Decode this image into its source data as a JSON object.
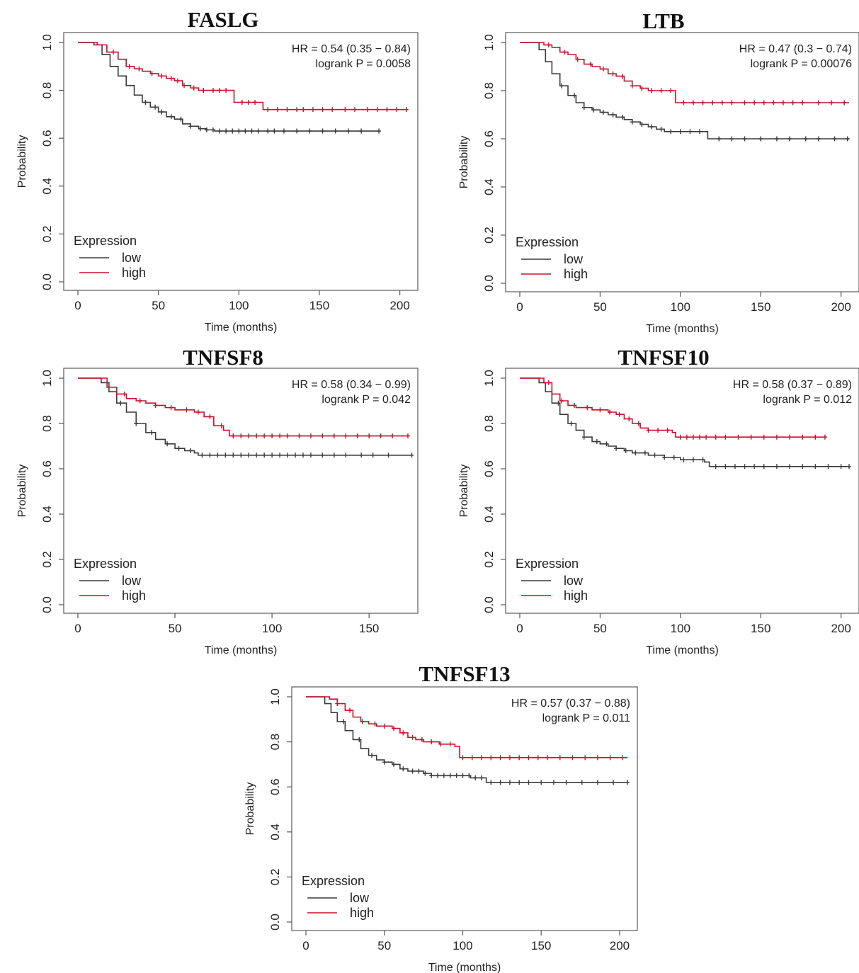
{
  "chart_data": [
    {
      "type": "line",
      "title": "FASLG",
      "xlabel": "Time (months)",
      "ylabel": "Probability",
      "xlim": [
        0,
        205
      ],
      "ylim": [
        0,
        1
      ],
      "xticks": [
        "0",
        "50",
        "100",
        "150",
        "200"
      ],
      "yticks": [
        "0.0",
        "0.2",
        "0.4",
        "0.6",
        "0.8",
        "1.0"
      ],
      "annotation": [
        "HR = 0.54 (0.35 − 0.84)",
        "logrank P = 0.0058"
      ],
      "legend_title": "Expression",
      "legend_position": "bottom-left",
      "series": [
        {
          "name": "low",
          "color": "#3a3a3a",
          "x": [
            0,
            5,
            10,
            15,
            20,
            25,
            30,
            35,
            40,
            45,
            50,
            55,
            60,
            65,
            70,
            75,
            80,
            85,
            90,
            187
          ],
          "y": [
            1.0,
            1.0,
            0.99,
            0.95,
            0.9,
            0.86,
            0.82,
            0.78,
            0.75,
            0.73,
            0.71,
            0.69,
            0.68,
            0.66,
            0.65,
            0.64,
            0.635,
            0.63,
            0.63,
            0.63
          ],
          "censor_x": [
            42,
            48,
            52,
            58,
            64,
            70,
            76,
            80,
            84,
            88,
            92,
            96,
            100,
            104,
            108,
            112,
            118,
            122,
            128,
            136,
            144,
            152,
            160,
            168,
            176,
            187
          ]
        },
        {
          "name": "high",
          "color": "#c8102e",
          "x": [
            0,
            8,
            12,
            18,
            25,
            30,
            35,
            40,
            45,
            50,
            55,
            60,
            65,
            70,
            75,
            80,
            85,
            90,
            97,
            100,
            110,
            115,
            120,
            205
          ],
          "y": [
            1.0,
            1.0,
            0.99,
            0.96,
            0.93,
            0.9,
            0.89,
            0.88,
            0.87,
            0.86,
            0.85,
            0.84,
            0.82,
            0.81,
            0.8,
            0.8,
            0.8,
            0.8,
            0.75,
            0.75,
            0.75,
            0.72,
            0.72,
            0.72
          ],
          "censor_x": [
            22,
            32,
            38,
            46,
            52,
            58,
            62,
            66,
            72,
            78,
            84,
            88,
            92,
            102,
            106,
            110,
            118,
            124,
            130,
            136,
            140,
            146,
            152,
            158,
            166,
            172,
            180,
            186,
            192,
            198,
            204
          ]
        }
      ]
    },
    {
      "type": "line",
      "title": "LTB",
      "xlabel": "Time (months)",
      "ylabel": "Probability",
      "xlim": [
        0,
        205
      ],
      "ylim": [
        0,
        1
      ],
      "xticks": [
        "0",
        "50",
        "100",
        "150",
        "200"
      ],
      "yticks": [
        "0.0",
        "0.2",
        "0.4",
        "0.6",
        "0.8",
        "1.0"
      ],
      "annotation": [
        "HR = 0.47 (0.3 − 0.74)",
        "logrank P = 0.00076"
      ],
      "legend_title": "Expression",
      "legend_position": "bottom-left",
      "series": [
        {
          "name": "low",
          "color": "#3a3a3a",
          "x": [
            0,
            8,
            12,
            16,
            20,
            25,
            30,
            35,
            40,
            45,
            50,
            55,
            60,
            65,
            70,
            75,
            80,
            85,
            90,
            100,
            110,
            117,
            120,
            205
          ],
          "y": [
            1.0,
            1.0,
            0.97,
            0.92,
            0.87,
            0.82,
            0.78,
            0.75,
            0.73,
            0.72,
            0.71,
            0.7,
            0.69,
            0.68,
            0.67,
            0.66,
            0.65,
            0.64,
            0.63,
            0.63,
            0.63,
            0.6,
            0.6,
            0.6
          ],
          "censor_x": [
            26,
            34,
            40,
            46,
            52,
            58,
            64,
            70,
            76,
            82,
            88,
            94,
            100,
            106,
            112,
            124,
            132,
            140,
            150,
            160,
            168,
            178,
            186,
            196,
            204
          ]
        },
        {
          "name": "high",
          "color": "#c8102e",
          "x": [
            0,
            10,
            15,
            20,
            25,
            30,
            35,
            40,
            45,
            50,
            55,
            60,
            65,
            70,
            75,
            80,
            85,
            90,
            97,
            100,
            205
          ],
          "y": [
            1.0,
            1.0,
            0.99,
            0.98,
            0.96,
            0.95,
            0.93,
            0.91,
            0.9,
            0.89,
            0.87,
            0.86,
            0.84,
            0.82,
            0.81,
            0.8,
            0.8,
            0.8,
            0.75,
            0.75,
            0.75
          ],
          "censor_x": [
            18,
            28,
            36,
            44,
            52,
            58,
            64,
            70,
            76,
            82,
            88,
            94,
            102,
            108,
            114,
            120,
            126,
            132,
            140,
            146,
            152,
            158,
            164,
            170,
            176,
            186,
            194,
            202
          ]
        }
      ]
    },
    {
      "type": "line",
      "title": "TNFSF8",
      "xlabel": "Time (months)",
      "ylabel": "Probability",
      "xlim": [
        0,
        170
      ],
      "ylim": [
        0,
        1
      ],
      "xticks": [
        "0",
        "50",
        "100",
        "150"
      ],
      "yticks": [
        "0.0",
        "0.2",
        "0.4",
        "0.6",
        "0.8",
        "1.0"
      ],
      "annotation": [
        "HR = 0.58 (0.34 − 0.99)",
        "logrank P = 0.042"
      ],
      "legend_title": "Expression",
      "legend_position": "bottom-left",
      "series": [
        {
          "name": "low",
          "color": "#3a3a3a",
          "x": [
            0,
            8,
            12,
            16,
            20,
            25,
            30,
            35,
            40,
            45,
            50,
            55,
            60,
            62,
            172
          ],
          "y": [
            1.0,
            1.0,
            0.98,
            0.94,
            0.89,
            0.85,
            0.8,
            0.76,
            0.73,
            0.71,
            0.69,
            0.68,
            0.67,
            0.66,
            0.66
          ],
          "censor_x": [
            22,
            30,
            38,
            46,
            52,
            58,
            64,
            68,
            72,
            76,
            80,
            84,
            88,
            92,
            96,
            100,
            104,
            108,
            112,
            116,
            120,
            126,
            132,
            138,
            146,
            152,
            160,
            172
          ]
        },
        {
          "name": "high",
          "color": "#c8102e",
          "x": [
            0,
            10,
            15,
            20,
            25,
            30,
            35,
            40,
            45,
            50,
            55,
            60,
            65,
            70,
            75,
            78,
            170
          ],
          "y": [
            1.0,
            1.0,
            0.96,
            0.93,
            0.91,
            0.9,
            0.89,
            0.88,
            0.87,
            0.86,
            0.86,
            0.85,
            0.83,
            0.79,
            0.77,
            0.745,
            0.745
          ],
          "censor_x": [
            16,
            24,
            32,
            40,
            48,
            56,
            62,
            68,
            74,
            80,
            84,
            88,
            92,
            96,
            100,
            104,
            108,
            114,
            120,
            126,
            132,
            138,
            144,
            150,
            156,
            162,
            170
          ]
        }
      ]
    },
    {
      "type": "line",
      "title": "TNFSF10",
      "xlabel": "Time (months)",
      "ylabel": "Probability",
      "xlim": [
        0,
        205
      ],
      "ylim": [
        0,
        1
      ],
      "xticks": [
        "0",
        "50",
        "100",
        "150",
        "200"
      ],
      "yticks": [
        "0.0",
        "0.2",
        "0.4",
        "0.6",
        "0.8",
        "1.0"
      ],
      "annotation": [
        "HR = 0.58 (0.37 − 0.89)",
        "logrank P = 0.012"
      ],
      "legend_title": "Expression",
      "legend_position": "bottom-left",
      "series": [
        {
          "name": "low",
          "color": "#3a3a3a",
          "x": [
            0,
            8,
            12,
            16,
            20,
            25,
            30,
            35,
            40,
            45,
            50,
            55,
            60,
            65,
            70,
            75,
            80,
            85,
            90,
            95,
            100,
            105,
            110,
            115,
            118,
            205
          ],
          "y": [
            1.0,
            1.0,
            0.98,
            0.94,
            0.89,
            0.84,
            0.8,
            0.77,
            0.74,
            0.72,
            0.71,
            0.7,
            0.69,
            0.68,
            0.67,
            0.67,
            0.66,
            0.66,
            0.65,
            0.65,
            0.64,
            0.64,
            0.64,
            0.63,
            0.61,
            0.61
          ],
          "censor_x": [
            24,
            32,
            40,
            48,
            54,
            60,
            66,
            72,
            78,
            84,
            90,
            96,
            102,
            108,
            114,
            122,
            128,
            134,
            140,
            146,
            152,
            160,
            168,
            176,
            184,
            192,
            200,
            205
          ]
        },
        {
          "name": "high",
          "color": "#c8102e",
          "x": [
            0,
            10,
            15,
            20,
            25,
            30,
            35,
            40,
            45,
            50,
            55,
            60,
            65,
            70,
            75,
            80,
            85,
            90,
            95,
            97,
            190
          ],
          "y": [
            1.0,
            1.0,
            0.98,
            0.93,
            0.9,
            0.88,
            0.87,
            0.87,
            0.86,
            0.86,
            0.85,
            0.84,
            0.82,
            0.8,
            0.78,
            0.77,
            0.77,
            0.77,
            0.76,
            0.74,
            0.74
          ],
          "censor_x": [
            18,
            26,
            34,
            42,
            50,
            56,
            62,
            68,
            74,
            80,
            86,
            92,
            100,
            104,
            108,
            112,
            116,
            122,
            128,
            136,
            144,
            152,
            160,
            168,
            176,
            184,
            190
          ]
        }
      ]
    },
    {
      "type": "line",
      "title": "TNFSF13",
      "xlabel": "Time (months)",
      "ylabel": "Probability",
      "xlim": [
        0,
        205
      ],
      "ylim": [
        0,
        1
      ],
      "xticks": [
        "0",
        "50",
        "100",
        "150",
        "200"
      ],
      "yticks": [
        "0.0",
        "0.2",
        "0.4",
        "0.6",
        "0.8",
        "1.0"
      ],
      "annotation": [
        "HR = 0.57 (0.37 − 0.88)",
        "logrank P = 0.011"
      ],
      "legend_title": "Expression",
      "legend_position": "bottom-left",
      "series": [
        {
          "name": "low",
          "color": "#3a3a3a",
          "x": [
            0,
            8,
            12,
            16,
            20,
            25,
            30,
            35,
            40,
            45,
            50,
            55,
            60,
            65,
            70,
            75,
            80,
            85,
            90,
            95,
            100,
            105,
            110,
            115,
            205
          ],
          "y": [
            1.0,
            1.0,
            0.97,
            0.93,
            0.89,
            0.85,
            0.81,
            0.77,
            0.74,
            0.72,
            0.71,
            0.7,
            0.68,
            0.67,
            0.67,
            0.66,
            0.65,
            0.65,
            0.65,
            0.65,
            0.65,
            0.64,
            0.64,
            0.62,
            0.62
          ],
          "censor_x": [
            24,
            34,
            42,
            50,
            56,
            62,
            68,
            72,
            76,
            80,
            84,
            88,
            92,
            96,
            100,
            104,
            108,
            112,
            118,
            124,
            130,
            136,
            142,
            150,
            158,
            166,
            176,
            186,
            196,
            205
          ]
        },
        {
          "name": "high",
          "color": "#c8102e",
          "x": [
            0,
            10,
            15,
            20,
            25,
            30,
            35,
            40,
            45,
            50,
            55,
            60,
            65,
            70,
            75,
            80,
            85,
            90,
            95,
            98,
            205
          ],
          "y": [
            1.0,
            1.0,
            0.99,
            0.97,
            0.94,
            0.91,
            0.89,
            0.88,
            0.87,
            0.87,
            0.86,
            0.84,
            0.82,
            0.81,
            0.8,
            0.8,
            0.79,
            0.79,
            0.78,
            0.73,
            0.73
          ],
          "censor_x": [
            20,
            28,
            36,
            44,
            50,
            56,
            62,
            68,
            74,
            80,
            86,
            92,
            100,
            106,
            112,
            118,
            124,
            130,
            136,
            142,
            148,
            154,
            162,
            170,
            178,
            186,
            194,
            202
          ]
        }
      ]
    }
  ]
}
